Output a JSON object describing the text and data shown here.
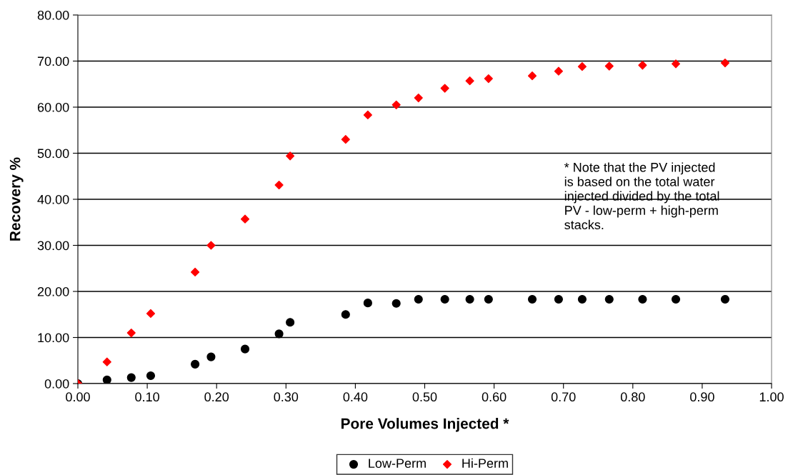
{
  "chart_data": {
    "type": "scatter",
    "xlabel": "Pore Volumes Injected *",
    "ylabel": "Recovery %",
    "x": [
      0,
      0.042,
      0.077,
      0.105,
      0.169,
      0.192,
      0.241,
      0.29,
      0.306,
      0.386,
      0.418,
      0.459,
      0.491,
      0.529,
      0.565,
      0.592,
      0.655,
      0.693,
      0.727,
      0.766,
      0.814,
      0.862,
      0.933
    ],
    "series": [
      {
        "name": "Low-Perm",
        "color": "#000000",
        "marker": "circle",
        "values": [
          0,
          0.8,
          1.3,
          1.7,
          4.2,
          5.8,
          7.5,
          10.8,
          13.3,
          15.0,
          17.5,
          17.4,
          18.3,
          18.3,
          18.3,
          18.3,
          18.3,
          18.3,
          18.3,
          18.3,
          18.3,
          18.3,
          18.3
        ]
      },
      {
        "name": "Hi-Perm",
        "color": "#ff0000",
        "marker": "diamond",
        "values": [
          0,
          4.7,
          11.0,
          15.2,
          24.2,
          30.0,
          35.7,
          43.1,
          49.4,
          53.0,
          58.3,
          60.5,
          62.0,
          64.1,
          65.7,
          66.2,
          66.8,
          67.8,
          68.8,
          68.9,
          69.1,
          69.4,
          69.6
        ]
      }
    ],
    "xlim": [
      0,
      1
    ],
    "xticks": [
      {
        "value": 0,
        "label": "0.00"
      },
      {
        "value": 0.1,
        "label": "0.10"
      },
      {
        "value": 0.2,
        "label": "0.20"
      },
      {
        "value": 0.3,
        "label": "0.30"
      },
      {
        "value": 0.4,
        "label": "0.40"
      },
      {
        "value": 0.5,
        "label": "0.50"
      },
      {
        "value": 0.6,
        "label": "0.60"
      },
      {
        "value": 0.7,
        "label": "0.70"
      },
      {
        "value": 0.8,
        "label": "0.80"
      },
      {
        "value": 0.9,
        "label": "0.90"
      },
      {
        "value": 1,
        "label": "1.00"
      }
    ],
    "ylim": [
      0,
      80
    ],
    "yticks": [
      {
        "value": 0,
        "label": "0.00"
      },
      {
        "value": 10,
        "label": "10.00"
      },
      {
        "value": 20,
        "label": "20.00"
      },
      {
        "value": 30,
        "label": "30.00"
      },
      {
        "value": 40,
        "label": "40.00"
      },
      {
        "value": 50,
        "label": "50.00"
      },
      {
        "value": 60,
        "label": "60.00"
      },
      {
        "value": 70,
        "label": "70.00"
      },
      {
        "value": 80,
        "label": "80.00"
      }
    ],
    "grid": "y",
    "legend": "bottom",
    "annotations": [
      "* Note that the PV injected\nis based on the total water\ninjected divided by the total\nPV - low-perm + high-perm\nstacks."
    ]
  }
}
